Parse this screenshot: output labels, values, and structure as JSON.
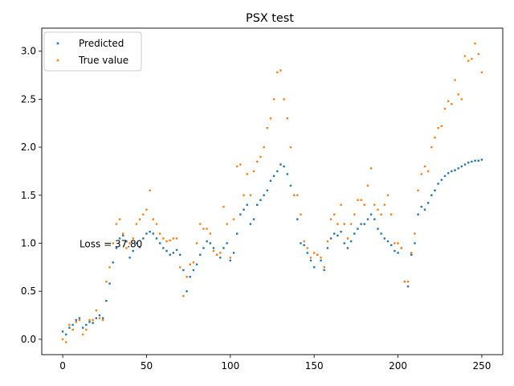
{
  "chart_data": {
    "type": "scatter",
    "title": "PSX test",
    "xlabel": "",
    "ylabel": "",
    "xlim": [
      -12.5,
      262.5
    ],
    "ylim": [
      -0.16,
      3.24
    ],
    "xticks": [
      0,
      50,
      100,
      150,
      200,
      250
    ],
    "xtick_labels": [
      "0",
      "50",
      "100",
      "150",
      "200",
      "250"
    ],
    "yticks": [
      0.0,
      0.5,
      1.0,
      1.5,
      2.0,
      2.5,
      3.0
    ],
    "ytick_labels": [
      "0.0",
      "0.5",
      "1.0",
      "1.5",
      "2.0",
      "2.5",
      "3.0"
    ],
    "grid": false,
    "legend_position": "upper-left",
    "annotation": {
      "text": "Loss = 37.80",
      "x": 10,
      "y": 0.99
    },
    "series": [
      {
        "name": "Predicted",
        "color": "#1f77b4",
        "x": [
          0,
          2,
          4,
          6,
          8,
          10,
          12,
          14,
          16,
          18,
          20,
          22,
          24,
          26,
          28,
          30,
          32,
          34,
          36,
          38,
          40,
          42,
          44,
          46,
          48,
          50,
          52,
          54,
          56,
          58,
          60,
          62,
          64,
          66,
          68,
          70,
          72,
          74,
          76,
          78,
          80,
          82,
          84,
          86,
          88,
          90,
          92,
          94,
          96,
          98,
          100,
          102,
          104,
          106,
          108,
          110,
          112,
          114,
          116,
          118,
          120,
          122,
          124,
          126,
          128,
          130,
          132,
          134,
          136,
          138,
          140,
          142,
          144,
          146,
          148,
          150,
          152,
          154,
          156,
          158,
          160,
          162,
          164,
          166,
          168,
          170,
          172,
          174,
          176,
          178,
          180,
          182,
          184,
          186,
          188,
          190,
          192,
          194,
          196,
          198,
          200,
          202,
          204,
          206,
          208,
          210,
          212,
          214,
          216,
          218,
          220,
          222,
          224,
          226,
          228,
          230,
          232,
          234,
          236,
          238,
          240,
          242,
          244,
          246,
          248,
          250
        ],
        "y": [
          0.08,
          0.05,
          0.12,
          0.15,
          0.2,
          0.22,
          0.12,
          0.15,
          0.18,
          0.17,
          0.22,
          0.25,
          0.22,
          0.4,
          0.58,
          0.8,
          0.95,
          1.05,
          1.08,
          1.02,
          0.85,
          0.92,
          1.0,
          0.96,
          1.05,
          1.1,
          1.12,
          1.1,
          1.05,
          1.0,
          0.95,
          0.92,
          0.88,
          0.9,
          0.93,
          0.88,
          0.72,
          0.5,
          0.65,
          0.72,
          0.78,
          0.88,
          0.95,
          1.02,
          1.0,
          0.95,
          0.88,
          0.85,
          0.95,
          1.0,
          0.82,
          0.9,
          1.1,
          1.3,
          1.35,
          1.4,
          1.2,
          1.25,
          1.4,
          1.45,
          1.5,
          1.55,
          1.65,
          1.7,
          1.75,
          1.82,
          1.8,
          1.72,
          1.6,
          1.5,
          1.25,
          1.0,
          0.98,
          0.9,
          0.82,
          0.75,
          0.88,
          0.82,
          0.72,
          0.95,
          1.05,
          1.1,
          1.08,
          1.12,
          1.0,
          0.95,
          1.02,
          1.1,
          1.15,
          1.2,
          1.2,
          1.25,
          1.3,
          1.25,
          1.15,
          1.1,
          1.05,
          1.02,
          0.98,
          0.92,
          0.9,
          0.95,
          0.6,
          0.55,
          0.88,
          1.0,
          1.3,
          1.38,
          1.35,
          1.42,
          1.5,
          1.55,
          1.62,
          1.66,
          1.7,
          1.73,
          1.75,
          1.76,
          1.78,
          1.8,
          1.82,
          1.84,
          1.85,
          1.86,
          1.86,
          1.87
        ]
      },
      {
        "name": "True value",
        "color": "#ff7f0e",
        "x": [
          0,
          2,
          4,
          6,
          8,
          10,
          12,
          14,
          16,
          18,
          20,
          22,
          24,
          26,
          28,
          30,
          32,
          34,
          36,
          38,
          40,
          42,
          44,
          46,
          48,
          50,
          52,
          54,
          56,
          58,
          60,
          62,
          64,
          66,
          68,
          70,
          72,
          74,
          76,
          78,
          80,
          82,
          84,
          86,
          88,
          90,
          92,
          94,
          96,
          98,
          100,
          102,
          104,
          106,
          108,
          110,
          112,
          114,
          116,
          118,
          120,
          122,
          124,
          126,
          128,
          130,
          132,
          134,
          136,
          138,
          140,
          142,
          144,
          146,
          148,
          150,
          152,
          154,
          156,
          158,
          160,
          162,
          164,
          166,
          168,
          170,
          172,
          174,
          176,
          178,
          180,
          182,
          184,
          186,
          188,
          190,
          192,
          194,
          196,
          198,
          200,
          202,
          204,
          206,
          208,
          210,
          212,
          214,
          216,
          218,
          220,
          222,
          224,
          226,
          228,
          230,
          232,
          234,
          236,
          238,
          240,
          242,
          244,
          246,
          248,
          250
        ],
        "y": [
          0.0,
          -0.03,
          0.15,
          0.1,
          0.18,
          0.2,
          0.05,
          0.1,
          0.2,
          0.2,
          0.3,
          0.22,
          0.2,
          0.6,
          0.75,
          1.0,
          1.2,
          1.25,
          1.1,
          0.95,
          1.0,
          1.05,
          1.2,
          1.25,
          1.3,
          1.35,
          1.55,
          1.25,
          1.2,
          1.1,
          1.05,
          1.02,
          1.03,
          1.05,
          1.05,
          0.75,
          0.45,
          0.65,
          0.78,
          0.8,
          1.0,
          1.2,
          1.15,
          1.15,
          1.1,
          0.92,
          0.88,
          0.9,
          1.38,
          1.2,
          0.85,
          1.25,
          1.8,
          1.82,
          1.5,
          1.72,
          1.5,
          1.75,
          1.85,
          1.9,
          2.0,
          2.2,
          2.3,
          2.5,
          2.78,
          2.8,
          2.5,
          2.3,
          2.0,
          1.5,
          1.5,
          1.3,
          1.02,
          0.95,
          0.85,
          0.9,
          0.88,
          0.85,
          0.75,
          1.02,
          1.25,
          1.3,
          1.2,
          1.4,
          1.2,
          1.05,
          1.2,
          1.3,
          1.45,
          1.45,
          1.4,
          1.6,
          1.78,
          1.4,
          1.35,
          1.3,
          1.4,
          1.5,
          1.3,
          1.0,
          1.0,
          0.95,
          0.6,
          0.6,
          0.9,
          1.1,
          1.55,
          1.72,
          1.8,
          1.75,
          2.0,
          2.1,
          2.2,
          2.22,
          2.4,
          2.48,
          2.45,
          2.7,
          2.55,
          2.5,
          2.95,
          2.9,
          2.92,
          3.08,
          2.97,
          2.78
        ]
      }
    ]
  }
}
